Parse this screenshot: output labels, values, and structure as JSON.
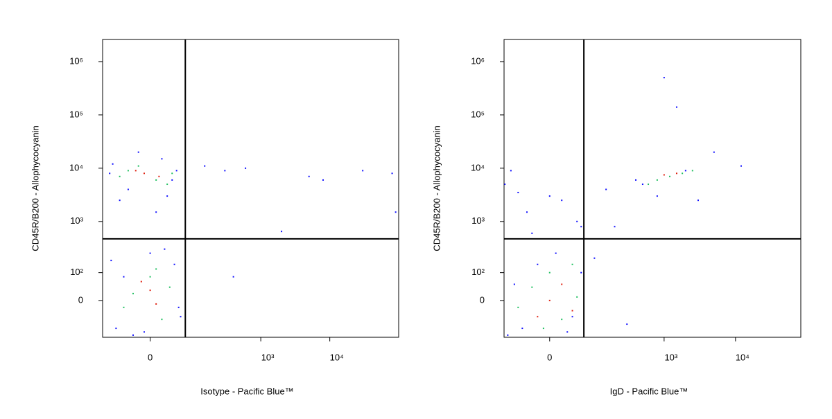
{
  "chart_data": [
    {
      "type": "scatter",
      "x_label": "Isotype - Pacific Blue™",
      "y_label": "CD45R/B200 - Allophycocyanin",
      "xscale": "biexponential",
      "yscale": "biexponential",
      "xlim": [
        -117,
        99500
      ],
      "ylim": [
        -155,
        2600000
      ],
      "xticks": [
        0,
        {
          "value": 1000,
          "label": "10³"
        },
        {
          "value": 10000,
          "label": "10⁴"
        }
      ],
      "yticks": [
        0,
        {
          "value": 100,
          "label": "10²"
        },
        {
          "value": 1000,
          "label": "10³"
        },
        {
          "value": 10000,
          "label": "10⁴"
        },
        {
          "value": 100000,
          "label": "10⁵"
        },
        {
          "value": 1000000,
          "label": "10⁶"
        }
      ],
      "gate": {
        "x": 73,
        "y": 470
      },
      "series": [
        {
          "color": "#1010ff",
          "x": [
            -80,
            -40,
            20,
            50,
            -60,
            10,
            40,
            -90,
            30,
            -20,
            -70,
            -30,
            0,
            45,
            60,
            -50,
            25,
            -10,
            55,
            -85,
            150,
            300,
            600,
            5000,
            8000,
            30000,
            80000,
            2000,
            400,
            90000
          ],
          "y": [
            12000,
            4000,
            15000,
            9000,
            2500,
            1500,
            6000,
            8000,
            3000,
            20000,
            -100,
            -140,
            250,
            150,
            -50,
            80,
            300,
            -120,
            -20,
            180,
            11000,
            9000,
            10000,
            7000,
            6000,
            9000,
            8000,
            650,
            80,
            1500
          ]
        },
        {
          "color": "#20c060",
          "x": [
            -40,
            10,
            30,
            -20,
            40,
            -60,
            -30,
            20,
            0,
            -50,
            35,
            10
          ],
          "y": [
            9000,
            6000,
            5000,
            11000,
            8000,
            7000,
            20,
            -60,
            80,
            -20,
            40,
            120
          ]
        },
        {
          "color": "#e02010",
          "x": [
            -10,
            15,
            -25,
            0,
            10,
            -15
          ],
          "y": [
            8000,
            7000,
            9000,
            30,
            -10,
            60
          ]
        }
      ]
    },
    {
      "type": "scatter",
      "x_label": "IgD - Pacific Blue™",
      "y_label": "CD45R/B200 - Allophycocyanin",
      "xscale": "biexponential",
      "yscale": "biexponential",
      "xlim": [
        -103,
        82000
      ],
      "ylim": [
        -155,
        2600000
      ],
      "xticks": [
        0,
        {
          "value": 1000,
          "label": "10³"
        },
        {
          "value": 10000,
          "label": "10⁴"
        }
      ],
      "yticks": [
        0,
        {
          "value": 100,
          "label": "10²"
        },
        {
          "value": 1000,
          "label": "10³"
        },
        {
          "value": 10000,
          "label": "10⁴"
        },
        {
          "value": 100000,
          "label": "10⁵"
        },
        {
          "value": 1000000,
          "label": "10⁶"
        }
      ],
      "gate": {
        "x": 67,
        "y": 470
      },
      "series": [
        {
          "color": "#1010ff",
          "x": [
            -90,
            -50,
            -20,
            10,
            40,
            60,
            -70,
            30,
            100,
            300,
            800,
            2000,
            5000,
            12000,
            150,
            500,
            -40,
            20,
            60,
            400,
            -100,
            -60,
            0,
            50,
            200,
            1000,
            3000,
            -30,
            -80,
            1500
          ],
          "y": [
            -140,
            -100,
            150,
            250,
            -50,
            100,
            50,
            -120,
            200,
            -80,
            3000,
            9000,
            20000,
            11000,
            4000,
            5000,
            1500,
            2500,
            800,
            6000,
            5000,
            3500,
            3000,
            1000,
            800,
            500000,
            2500,
            600,
            9000,
            140000
          ]
        },
        {
          "color": "#20c060",
          "x": [
            -30,
            20,
            0,
            50,
            -60,
            800,
            1200,
            1800,
            2500,
            600,
            40,
            -10
          ],
          "y": [
            40,
            -60,
            100,
            10,
            -20,
            6000,
            7000,
            8000,
            9000,
            5000,
            150,
            -100
          ]
        },
        {
          "color": "#e02010",
          "x": [
            0,
            20,
            -20,
            1500,
            1000,
            40
          ],
          "y": [
            0,
            50,
            -50,
            8000,
            7500,
            -30
          ]
        }
      ]
    }
  ]
}
